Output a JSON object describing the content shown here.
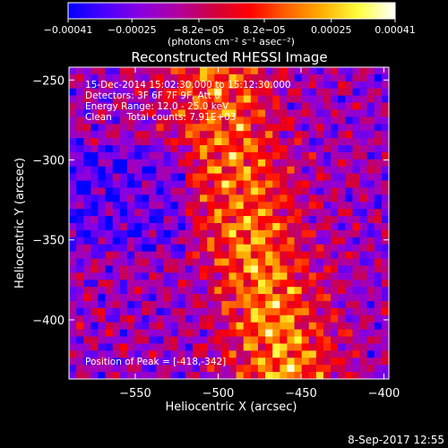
{
  "chart_data": {
    "type": "heatmap",
    "title": "Reconstructed RHESSI Image",
    "xlabel": "Heliocentric X (arcsec)",
    "ylabel": "Heliocentric Y (arcsec)",
    "xlim": [
      -590,
      -397
    ],
    "ylim": [
      -437,
      -242
    ],
    "xticks": [
      -550,
      -500,
      -450,
      -400
    ],
    "yticks": [
      -250,
      -300,
      -350,
      -400
    ],
    "xtick_labels": [
      "−550",
      "−500",
      "−450",
      "−400"
    ],
    "ytick_labels": [
      "−250",
      "−300",
      "−350",
      "−400"
    ],
    "colorbar": {
      "vmin": -0.00041,
      "vmax": 0.00041,
      "ticks": [
        -0.00041,
        -0.00025,
        -8.2e-05,
        8.2e-05,
        0.00025,
        0.00041
      ],
      "tick_labels": [
        "−0.00041",
        "−0.00025",
        "−8.2e−05",
        "8.2e−05",
        "0.00025",
        "0.00041"
      ],
      "units_label": "(photons cm⁻² s⁻¹ asec⁻²)",
      "colors": [
        "#0000ff",
        "#4a00ff",
        "#8a00e0",
        "#b000a0",
        "#d00040",
        "#ff0000",
        "#ff6000",
        "#ffb000",
        "#ffff40",
        "#ffffff"
      ]
    },
    "annotations": [
      "15-Dec-2014 15:02:30.000 to 15:12:30.000",
      "Detectors: 3F 6F 7F 9F, Att 0",
      "Energy Range: 12.0 - 25.0 keV",
      "Clean     Total counts: 7.91E+03"
    ],
    "peak_label": "Position of Peak = [-418,-342]",
    "peak": {
      "x": -418,
      "y": -342
    },
    "grid": false
  },
  "footer": {
    "timestamp": "8-Sep-2017 12:55"
  }
}
